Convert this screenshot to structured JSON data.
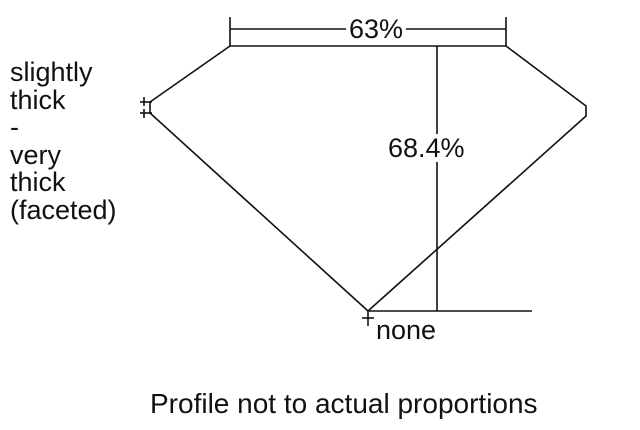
{
  "girdle_label": [
    "slightly",
    "thick",
    "-",
    "very",
    "thick",
    "(faceted)"
  ],
  "table_percent": "63%",
  "depth_percent": "68.4%",
  "culet_label": "none",
  "note": "Profile not to actual proportions",
  "colors": {
    "line": "#111111",
    "background": "#ffffff"
  }
}
